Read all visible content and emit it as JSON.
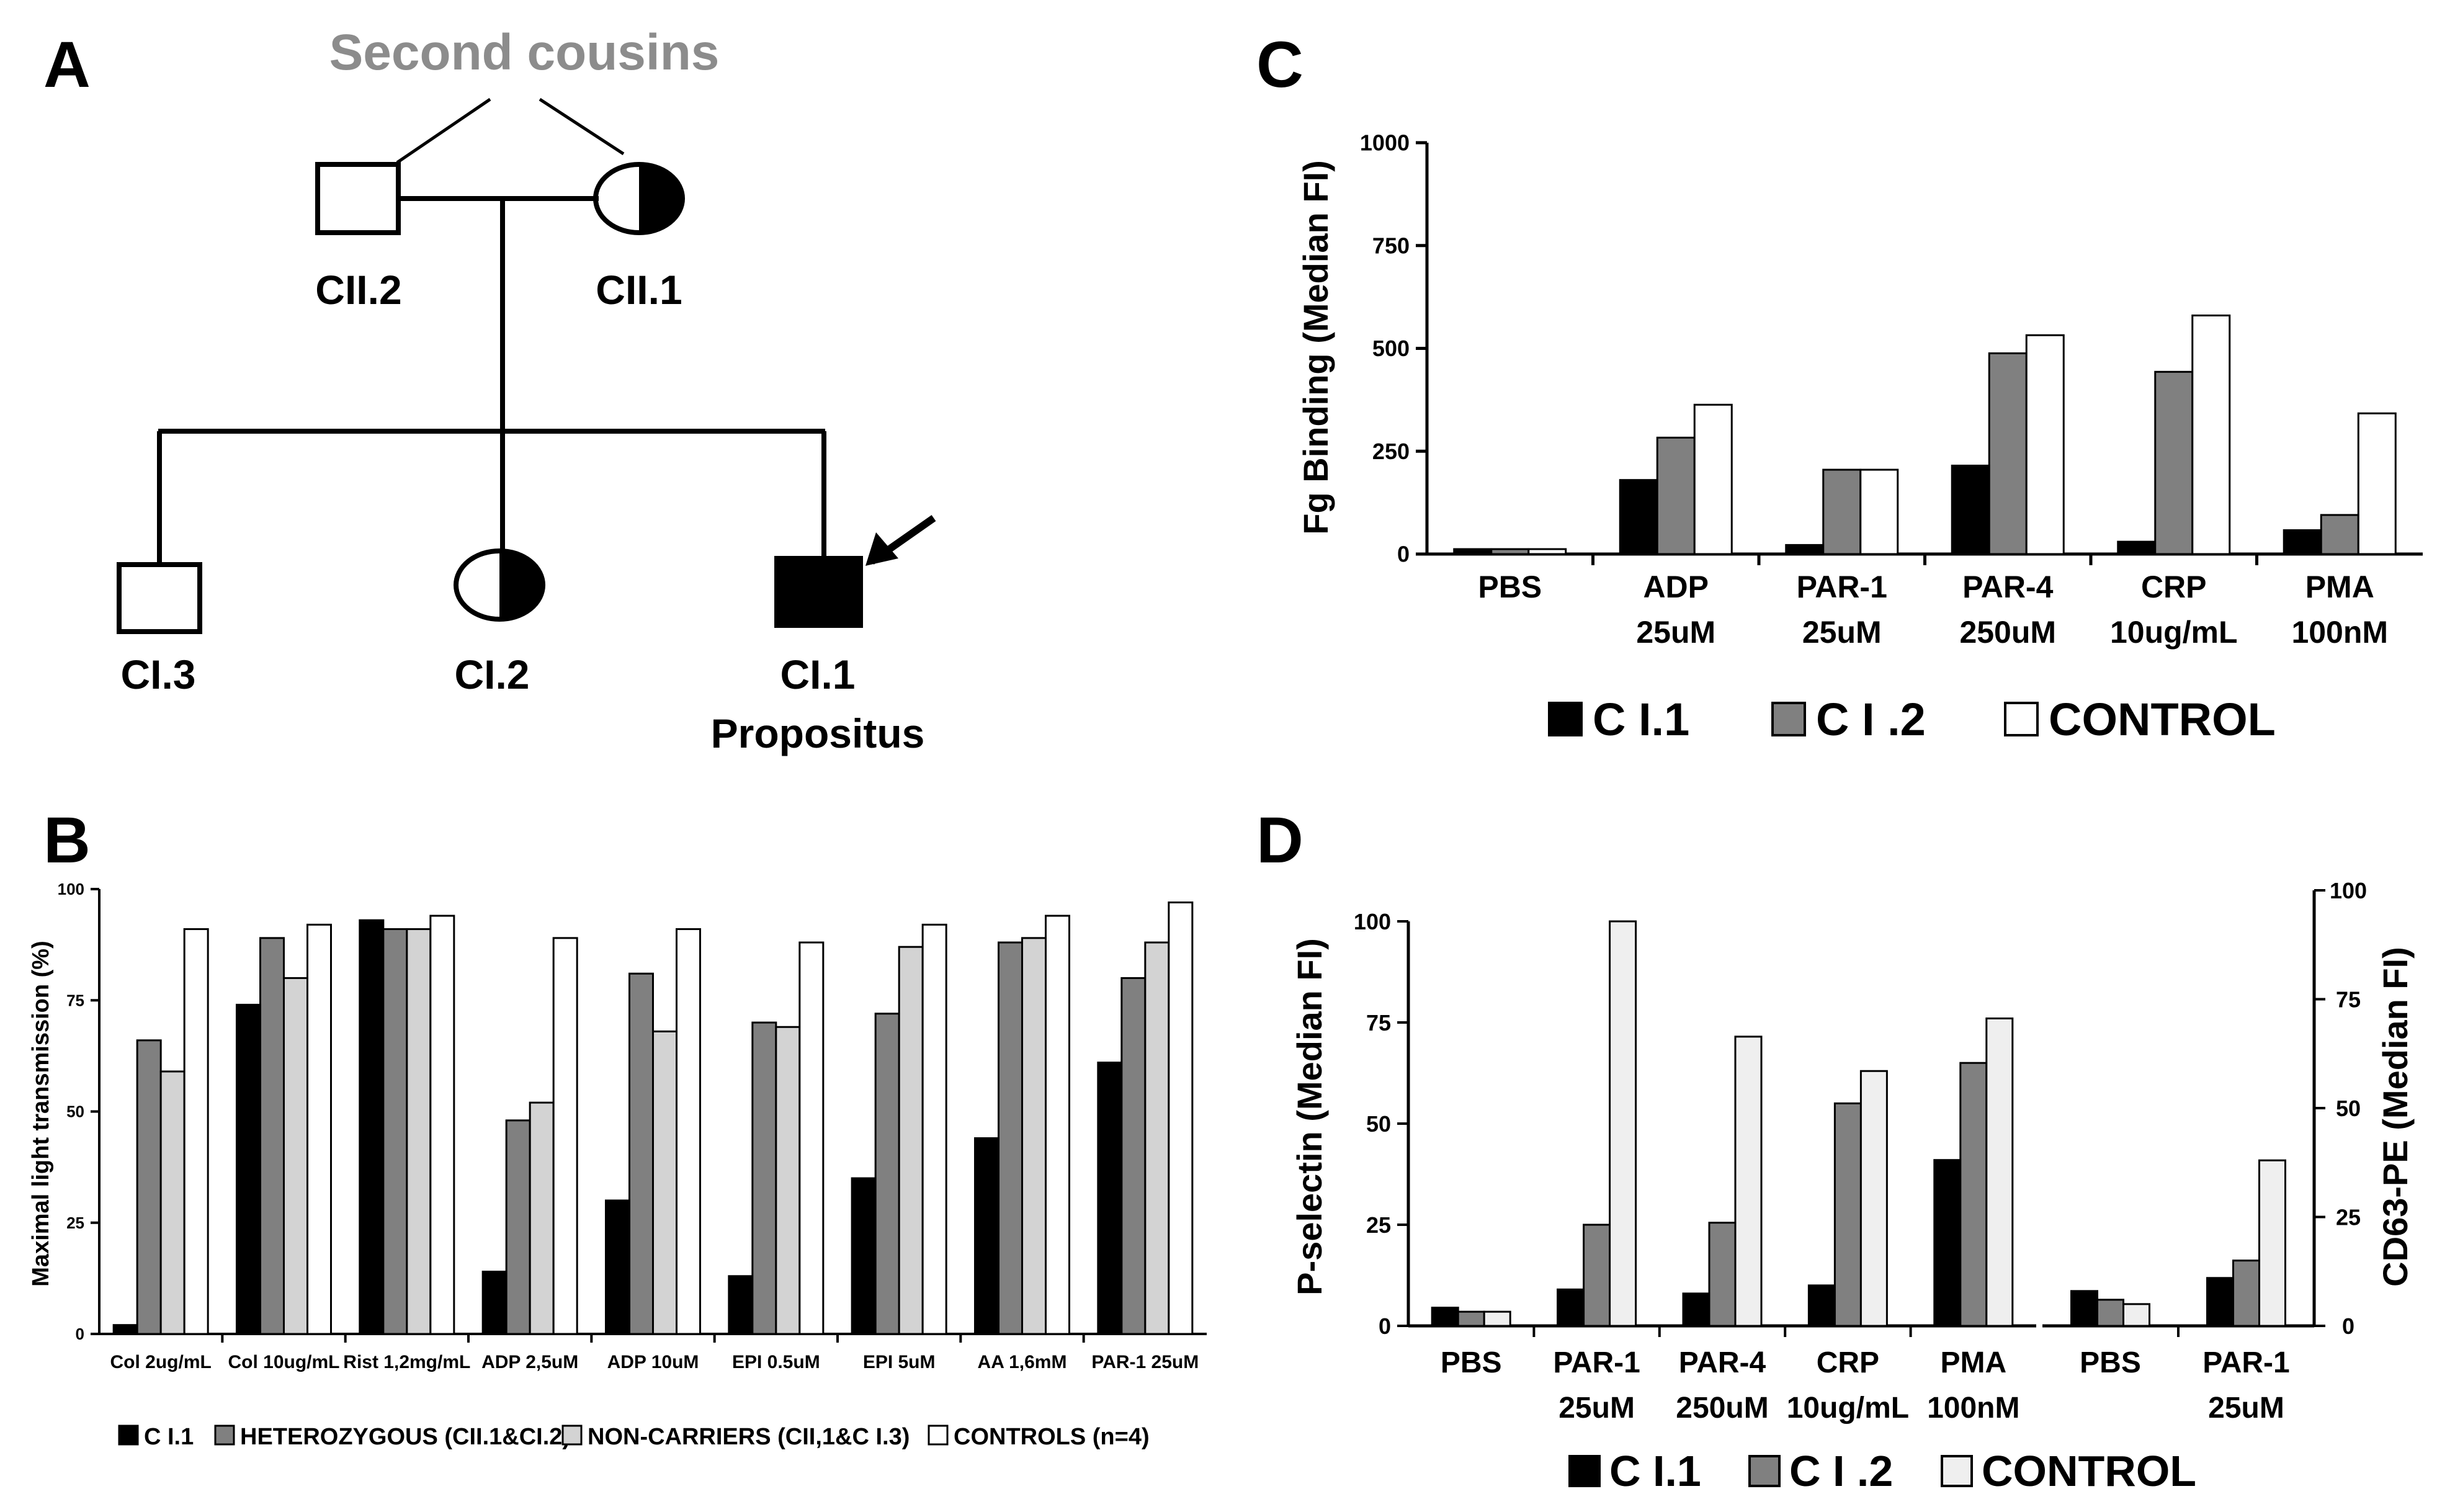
{
  "panels": {
    "A": {
      "letter": "A",
      "header": "Second cousins",
      "members": {
        "cii2": "CII.2",
        "cii1": "CII.1",
        "ci3": "CI.3",
        "ci2": "CI.2",
        "ci1": "CI.1",
        "ci1_note": "Propositus"
      }
    },
    "B": {
      "letter": "B"
    },
    "C": {
      "letter": "C"
    },
    "D": {
      "letter": "D"
    }
  },
  "colors": {
    "black": "#000000",
    "dark_gray": "#808080",
    "light_gray": "#d3d3d3",
    "very_light": "#efefef",
    "white": "#ffffff",
    "gray_text": "#8c8c8c"
  },
  "chart_data": [
    {
      "id": "B",
      "type": "bar",
      "ylabel": "Maximal light transmission (%)",
      "ylim": [
        0,
        100
      ],
      "yticks": [
        0,
        25,
        50,
        75,
        100
      ],
      "categories": [
        "Col 2ug/mL",
        "Col 10ug/mL",
        "Rist 1,2mg/mL",
        "ADP 2,5uM",
        "ADP 10uM",
        "EPI 0.5uM",
        "EPI 5uM",
        "AA 1,6mM",
        "PAR-1 25uM"
      ],
      "series": [
        {
          "name": "C I.1",
          "values": [
            2,
            74,
            93,
            14,
            30,
            13,
            35,
            44,
            61
          ]
        },
        {
          "name": "HETEROZYGOUS (CII.1&CI.2)",
          "values": [
            66,
            89,
            91,
            48,
            81,
            70,
            72,
            88,
            80
          ]
        },
        {
          "name": "NON-CARRIERS (CII,1&C I.3)",
          "values": [
            59,
            80,
            91,
            52,
            68,
            69,
            87,
            89,
            88
          ]
        },
        {
          "name": "CONTROLS (n=4)",
          "values": [
            91,
            92,
            94,
            89,
            91,
            88,
            92,
            94,
            97
          ]
        }
      ],
      "legend": "bottom"
    },
    {
      "id": "C",
      "type": "bar",
      "ylabel": "Fg Binding (Median FI)",
      "ylim": [
        0,
        1000
      ],
      "yticks": [
        0,
        250,
        500,
        750,
        1000
      ],
      "categories": [
        [
          "PBS"
        ],
        [
          "ADP",
          "25uM"
        ],
        [
          "PAR-1",
          "25uM"
        ],
        [
          "PAR-4",
          "250uM"
        ],
        [
          "CRP",
          "10ug/mL"
        ],
        [
          "PMA",
          "100nM"
        ]
      ],
      "series": [
        {
          "name": "C I.1",
          "values": [
            12,
            180,
            22,
            215,
            30,
            58
          ]
        },
        {
          "name": "C I .2",
          "values": [
            12,
            283,
            205,
            488,
            443,
            95
          ]
        },
        {
          "name": "CONTROL",
          "values": [
            12,
            363,
            205,
            532,
            580,
            342
          ]
        }
      ],
      "legend": "bottom"
    },
    {
      "id": "D",
      "type": "bar",
      "ylabel": "P-selectin (Median FI)",
      "ylabel_right": "CD63-PE (Median FI)",
      "ylim": [
        0,
        100
      ],
      "yticks": [
        0,
        25,
        50,
        75,
        100
      ],
      "categories": [
        [
          "PBS"
        ],
        [
          "PAR-1",
          "25uM"
        ],
        [
          "PAR-4",
          "250uM"
        ],
        [
          "CRP",
          "10ug/mL"
        ],
        [
          "PMA",
          "100nM"
        ],
        [
          "PBS"
        ],
        [
          "PAR-1",
          "25uM"
        ]
      ],
      "axis_group": [
        "left",
        "left",
        "left",
        "left",
        "left",
        "right",
        "right"
      ],
      "series": [
        {
          "name": "C I.1",
          "values": [
            4.5,
            9,
            8,
            10,
            41,
            8,
            11
          ]
        },
        {
          "name": "C I .2",
          "values": [
            3.5,
            25,
            25.5,
            55,
            65,
            6,
            15
          ]
        },
        {
          "name": "CONTROL",
          "values": [
            3.5,
            100,
            71.5,
            63,
            76,
            5,
            38
          ]
        }
      ],
      "legend": "bottom"
    }
  ]
}
